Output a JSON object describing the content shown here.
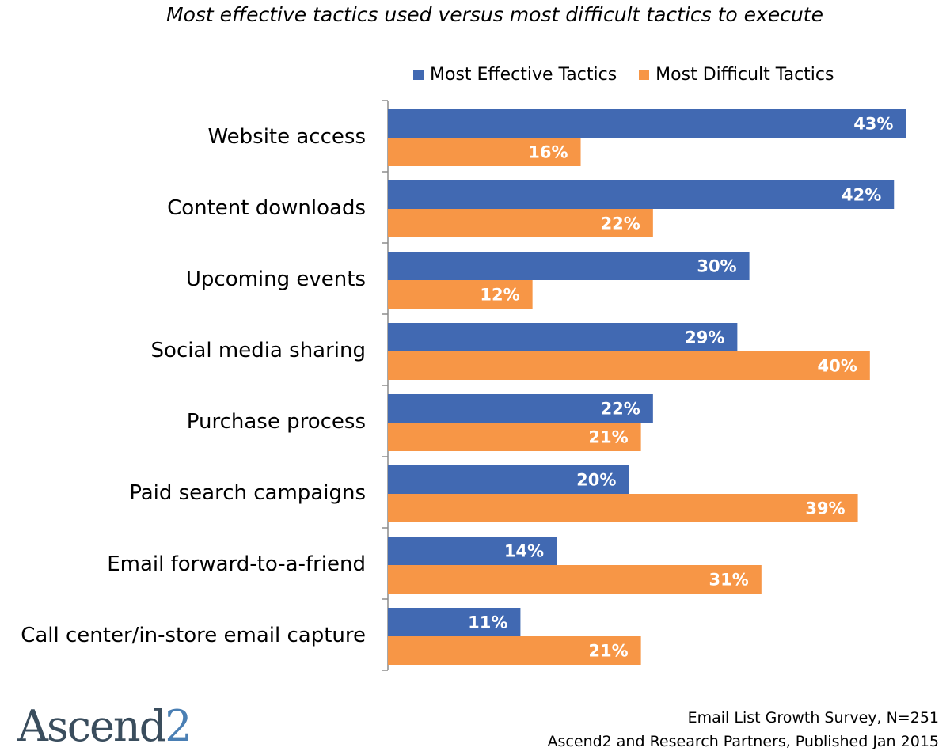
{
  "chart_data": {
    "type": "bar",
    "orientation": "horizontal",
    "title": "Most effective tactics used versus most difficult tactics to execute",
    "categories": [
      "Website access",
      "Content downloads",
      "Upcoming events",
      "Social media sharing",
      "Purchase process",
      "Paid search campaigns",
      "Email forward-to-a-friend",
      "Call center/in-store email capture"
    ],
    "series": [
      {
        "name": "Most Effective Tactics",
        "color": "#4169b2",
        "values": [
          43,
          42,
          30,
          29,
          22,
          20,
          14,
          11
        ],
        "labels": [
          "43%",
          "42%",
          "30%",
          "29%",
          "22%",
          "20%",
          "14%",
          "11%"
        ]
      },
      {
        "name": "Most Difficult Tactics",
        "color": "#f79646",
        "values": [
          16,
          22,
          12,
          40,
          21,
          39,
          31,
          21
        ],
        "labels": [
          "16%",
          "22%",
          "12%",
          "40%",
          "21%",
          "39%",
          "31%",
          "21%"
        ]
      }
    ],
    "xlim": [
      0,
      43
    ],
    "grid": false,
    "legend_position": "top-right"
  },
  "source": {
    "line1": "Email List Growth Survey, N=251",
    "line2": "Ascend2 and Research Partners, Published Jan 2015"
  },
  "logo": {
    "text": "Ascend",
    "suffix": "2"
  }
}
